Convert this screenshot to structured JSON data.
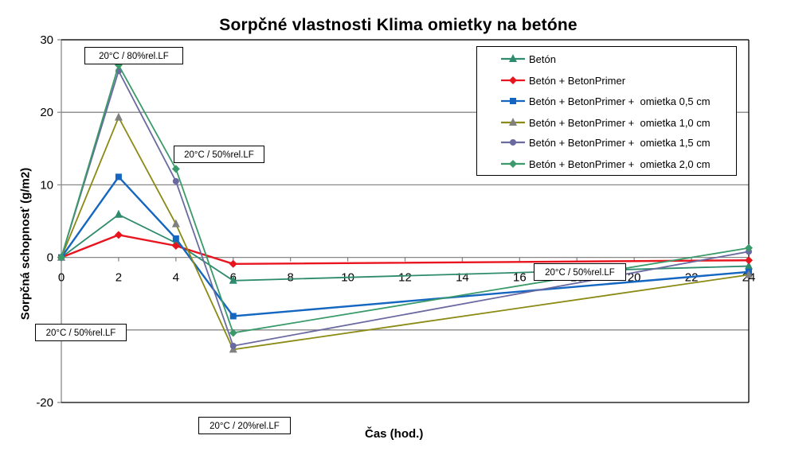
{
  "chart_data": {
    "type": "line",
    "title": "Sorpčné vlastnosti Klima omietky na betóne",
    "xlabel": "Čas (hod.)",
    "ylabel": "Sorpčná schopnosť (g/m2)",
    "xlim": [
      0,
      24
    ],
    "ylim": [
      -20,
      30
    ],
    "x_ticks": [
      "0",
      "2",
      "4",
      "6",
      "8",
      "10",
      "12",
      "14",
      "16",
      "18",
      "20",
      "22",
      "24"
    ],
    "y_ticks": [
      "30",
      "20",
      "10",
      "0",
      "-20"
    ],
    "grid": "horizontal",
    "legend_position": "upper right",
    "x": [
      0,
      2,
      4,
      6,
      24
    ],
    "series": [
      {
        "name": "Betón",
        "color": "#2e8b6e",
        "marker": "triangle",
        "values": [
          0,
          5.9,
          2.0,
          -3.2,
          -1.2
        ]
      },
      {
        "name": "Betón + BetonPrimer",
        "color": "#e8141e",
        "marker": "diamond",
        "values": [
          0,
          3.1,
          1.6,
          -0.9,
          -0.4
        ]
      },
      {
        "name": "Betón + BetonPrimer +  omietka 0,5 cm",
        "color": "#1466c0",
        "marker": "square",
        "values": [
          0,
          11.1,
          2.6,
          -8.1,
          -2.0
        ]
      },
      {
        "name": "Betón + BetonPrimer +  omietka 1,0 cm",
        "color": "#8a8a14",
        "marker": "triangle",
        "values": [
          0,
          19.3,
          4.6,
          -12.7,
          -2.4
        ]
      },
      {
        "name": "Betón + BetonPrimer +  omietka 1,5 cm",
        "color": "#6a6aa0",
        "marker": "circle",
        "values": [
          0,
          25.7,
          10.5,
          -12.2,
          0.8
        ]
      },
      {
        "name": "Betón + BetonPrimer +  omietka 2,0 cm",
        "color": "#3a9a6a",
        "marker": "diamond",
        "values": [
          0,
          26.5,
          12.2,
          -10.4,
          1.3
        ]
      }
    ],
    "annotations": [
      {
        "text": "20°C / 80%rel.LF"
      },
      {
        "text": "20°C / 50%rel.LF"
      },
      {
        "text": "20°C / 50%rel.LF"
      },
      {
        "text": "20°C / 20%rel.LF"
      },
      {
        "text": "20°C / 50%rel.LF"
      }
    ]
  }
}
